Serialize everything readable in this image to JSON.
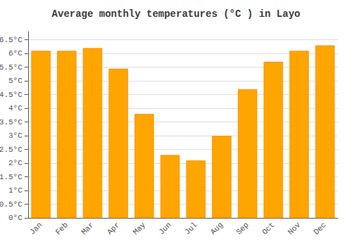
{
  "chart_data": {
    "type": "bar",
    "title": "Average monthly temperatures (°C ) in Layo",
    "categories": [
      "Jan",
      "Feb",
      "Mar",
      "Apr",
      "May",
      "Jun",
      "Jul",
      "Aug",
      "Sep",
      "Oct",
      "Nov",
      "Dec"
    ],
    "values": [
      6.1,
      6.1,
      6.2,
      5.45,
      3.8,
      2.3,
      2.1,
      3.0,
      4.7,
      5.7,
      6.1,
      6.3
    ],
    "color": "#FFA500",
    "ylim": [
      0,
      6.8
    ],
    "yticks": [
      {
        "value": 0.0,
        "label": "0°C"
      },
      {
        "value": 0.5,
        "label": "0.5°C"
      },
      {
        "value": 1.0,
        "label": "1°C"
      },
      {
        "value": 1.5,
        "label": "1.5°C"
      },
      {
        "value": 2.0,
        "label": "2°C"
      },
      {
        "value": 2.5,
        "label": "2.5°C"
      },
      {
        "value": 3.0,
        "label": "3°C"
      },
      {
        "value": 3.5,
        "label": "3.5°C"
      },
      {
        "value": 4.0,
        "label": "4°C"
      },
      {
        "value": 4.5,
        "label": "4.5°C"
      },
      {
        "value": 5.0,
        "label": "5°C"
      },
      {
        "value": 5.5,
        "label": "5.5°C"
      },
      {
        "value": 6.0,
        "label": "6°C"
      },
      {
        "value": 6.5,
        "label": "6.5°C"
      }
    ],
    "grid": true
  }
}
